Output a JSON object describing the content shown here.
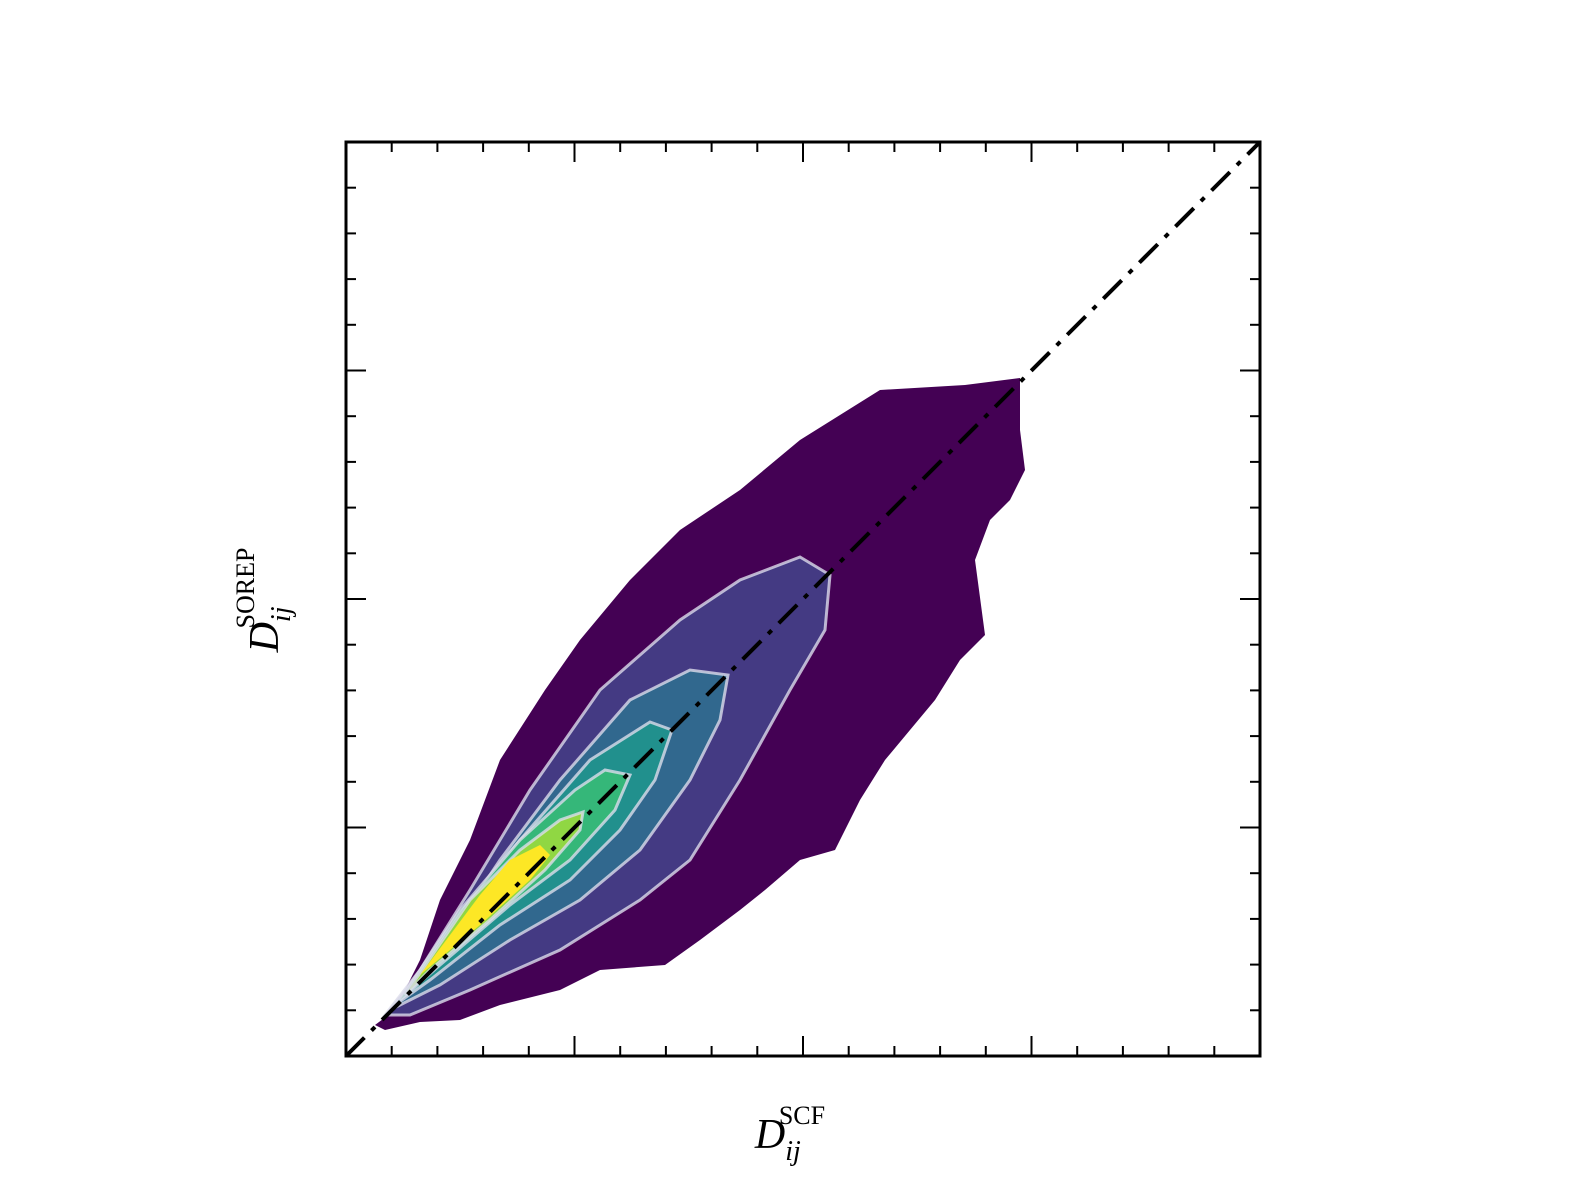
{
  "chart_data": {
    "type": "contour",
    "xlabel": {
      "base": "D",
      "sub": "ij",
      "sup": "SCF"
    },
    "ylabel": {
      "base": "D",
      "sub": "ij",
      "sup": "SOREP"
    }
  }
}
